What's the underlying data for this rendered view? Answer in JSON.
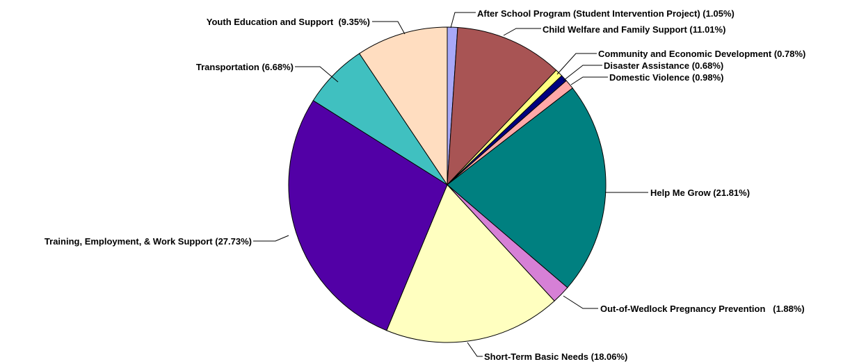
{
  "chart_data": {
    "type": "pie",
    "title": "",
    "start": "12 o'clock",
    "direction": "clockwise",
    "legend": "none",
    "slices": [
      {
        "label": "After School Program (Student Intervention Project) (1.05%)",
        "value": 1.05,
        "color": "#A8A8F8"
      },
      {
        "label": "Child Welfare and Family Support (11.01%)",
        "value": 11.01,
        "color": "#A85454"
      },
      {
        "label": "Community and Economic Development (0.78%)",
        "value": 0.78,
        "color": "#FFFF80"
      },
      {
        "label": "Disaster Assistance (0.68%)",
        "value": 0.68,
        "color": "#000080"
      },
      {
        "label": "Domestic Violence (0.98%)",
        "value": 0.98,
        "color": "#FFA8A8"
      },
      {
        "label": "Help Me Grow (21.81%)",
        "value": 21.81,
        "color": "#008080"
      },
      {
        "label": "Out-of-Wedlock Pregnancy Prevention   (1.88%)",
        "value": 1.88,
        "color": "#D680D6"
      },
      {
        "label": "Short-Term Basic Needs (18.06%)",
        "value": 18.06,
        "color": "#FFFFC0"
      },
      {
        "label": "Training, Employment, & Work Support (27.73%)",
        "value": 27.73,
        "color": "#5200A6"
      },
      {
        "label": "Transportation (6.68%)",
        "value": 6.68,
        "color": "#40C0C0"
      },
      {
        "label": "Youth Education and Support  (9.35%)",
        "value": 9.35,
        "color": "#FFDDC0"
      }
    ]
  }
}
